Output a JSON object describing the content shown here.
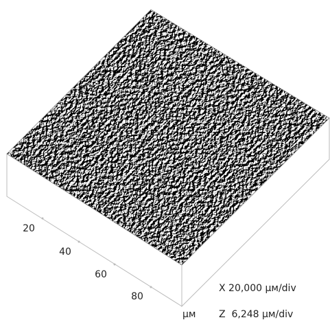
{
  "axis": {
    "ticks": [
      "20",
      "40",
      "60",
      "80"
    ],
    "unit": "µм"
  },
  "scale": {
    "x": "X 20,000 µм/div",
    "z": "Z  6,248 µм/div"
  }
}
